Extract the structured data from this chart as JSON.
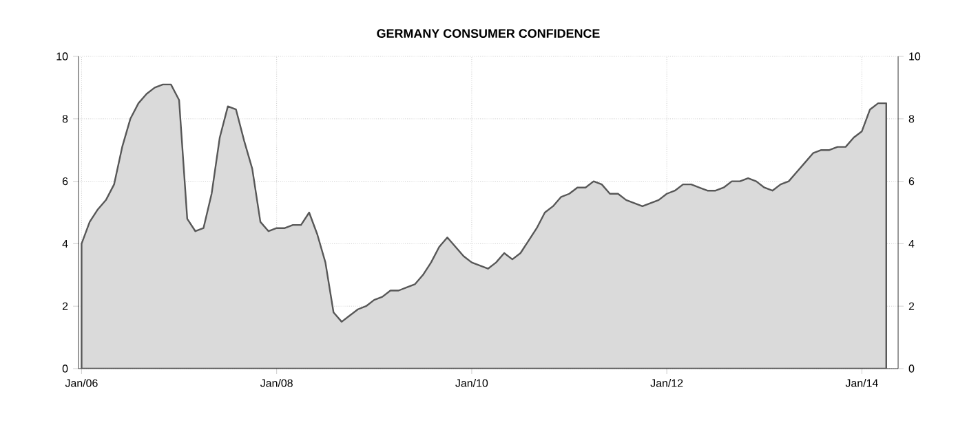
{
  "chart_data": {
    "type": "area",
    "title": "GERMANY CONSUMER CONFIDENCE",
    "x": [
      "2006-01",
      "2006-02",
      "2006-03",
      "2006-04",
      "2006-05",
      "2006-06",
      "2006-07",
      "2006-08",
      "2006-09",
      "2006-10",
      "2006-11",
      "2006-12",
      "2007-01",
      "2007-02",
      "2007-03",
      "2007-04",
      "2007-05",
      "2007-06",
      "2007-07",
      "2007-08",
      "2007-09",
      "2007-10",
      "2007-11",
      "2007-12",
      "2008-01",
      "2008-02",
      "2008-03",
      "2008-04",
      "2008-05",
      "2008-06",
      "2008-07",
      "2008-08",
      "2008-09",
      "2008-10",
      "2008-11",
      "2008-12",
      "2009-01",
      "2009-02",
      "2009-03",
      "2009-04",
      "2009-05",
      "2009-06",
      "2009-07",
      "2009-08",
      "2009-09",
      "2009-10",
      "2009-11",
      "2009-12",
      "2010-01",
      "2010-02",
      "2010-03",
      "2010-04",
      "2010-05",
      "2010-06",
      "2010-07",
      "2010-08",
      "2010-09",
      "2010-10",
      "2010-11",
      "2010-12",
      "2011-01",
      "2011-02",
      "2011-03",
      "2011-04",
      "2011-05",
      "2011-06",
      "2011-07",
      "2011-08",
      "2011-09",
      "2011-10",
      "2011-11",
      "2011-12",
      "2012-01",
      "2012-02",
      "2012-03",
      "2012-04",
      "2012-05",
      "2012-06",
      "2012-07",
      "2012-08",
      "2012-09",
      "2012-10",
      "2012-11",
      "2012-12",
      "2013-01",
      "2013-02",
      "2013-03",
      "2013-04",
      "2013-05",
      "2013-06",
      "2013-07",
      "2013-08",
      "2013-09",
      "2013-10",
      "2013-11",
      "2013-12",
      "2014-01",
      "2014-02",
      "2014-03",
      "2014-04"
    ],
    "values": [
      4.0,
      4.7,
      5.1,
      5.4,
      5.9,
      7.1,
      8.0,
      8.5,
      8.8,
      9.0,
      9.1,
      9.1,
      8.6,
      4.8,
      4.4,
      4.5,
      5.6,
      7.4,
      8.4,
      8.3,
      7.3,
      6.4,
      4.7,
      4.4,
      4.5,
      4.5,
      4.6,
      4.6,
      5.0,
      4.3,
      3.4,
      1.8,
      1.5,
      1.7,
      1.9,
      2.0,
      2.2,
      2.3,
      2.5,
      2.5,
      2.6,
      2.7,
      3.0,
      3.4,
      3.9,
      4.2,
      3.9,
      3.6,
      3.4,
      3.3,
      3.2,
      3.4,
      3.7,
      3.5,
      3.7,
      4.1,
      4.5,
      5.0,
      5.2,
      5.5,
      5.6,
      5.8,
      5.8,
      6.0,
      5.9,
      5.6,
      5.6,
      5.4,
      5.3,
      5.2,
      5.3,
      5.4,
      5.6,
      5.7,
      5.9,
      5.9,
      5.8,
      5.7,
      5.7,
      5.8,
      6.0,
      6.0,
      6.1,
      6.0,
      5.8,
      5.7,
      5.9,
      6.0,
      6.3,
      6.6,
      6.9,
      7.0,
      7.0,
      7.1,
      7.1,
      7.4,
      7.6,
      8.3,
      8.5,
      8.5
    ],
    "color": "#dadada",
    "xlim": [
      "2005-12-20",
      "2014-05-15"
    ],
    "xticks": [
      {
        "value": "2006-01",
        "label": "Jan/06"
      },
      {
        "value": "2008-01",
        "label": "Jan/08"
      },
      {
        "value": "2010-01",
        "label": "Jan/10"
      },
      {
        "value": "2012-01",
        "label": "Jan/12"
      },
      {
        "value": "2014-01",
        "label": "Jan/14"
      }
    ],
    "ylim": [
      0,
      10
    ],
    "yticks": [
      0,
      2,
      4,
      6,
      8,
      10
    ],
    "y2lim": [
      0,
      10
    ],
    "y2ticks": [
      0,
      2,
      4,
      6,
      8,
      10
    ],
    "grid": true
  }
}
